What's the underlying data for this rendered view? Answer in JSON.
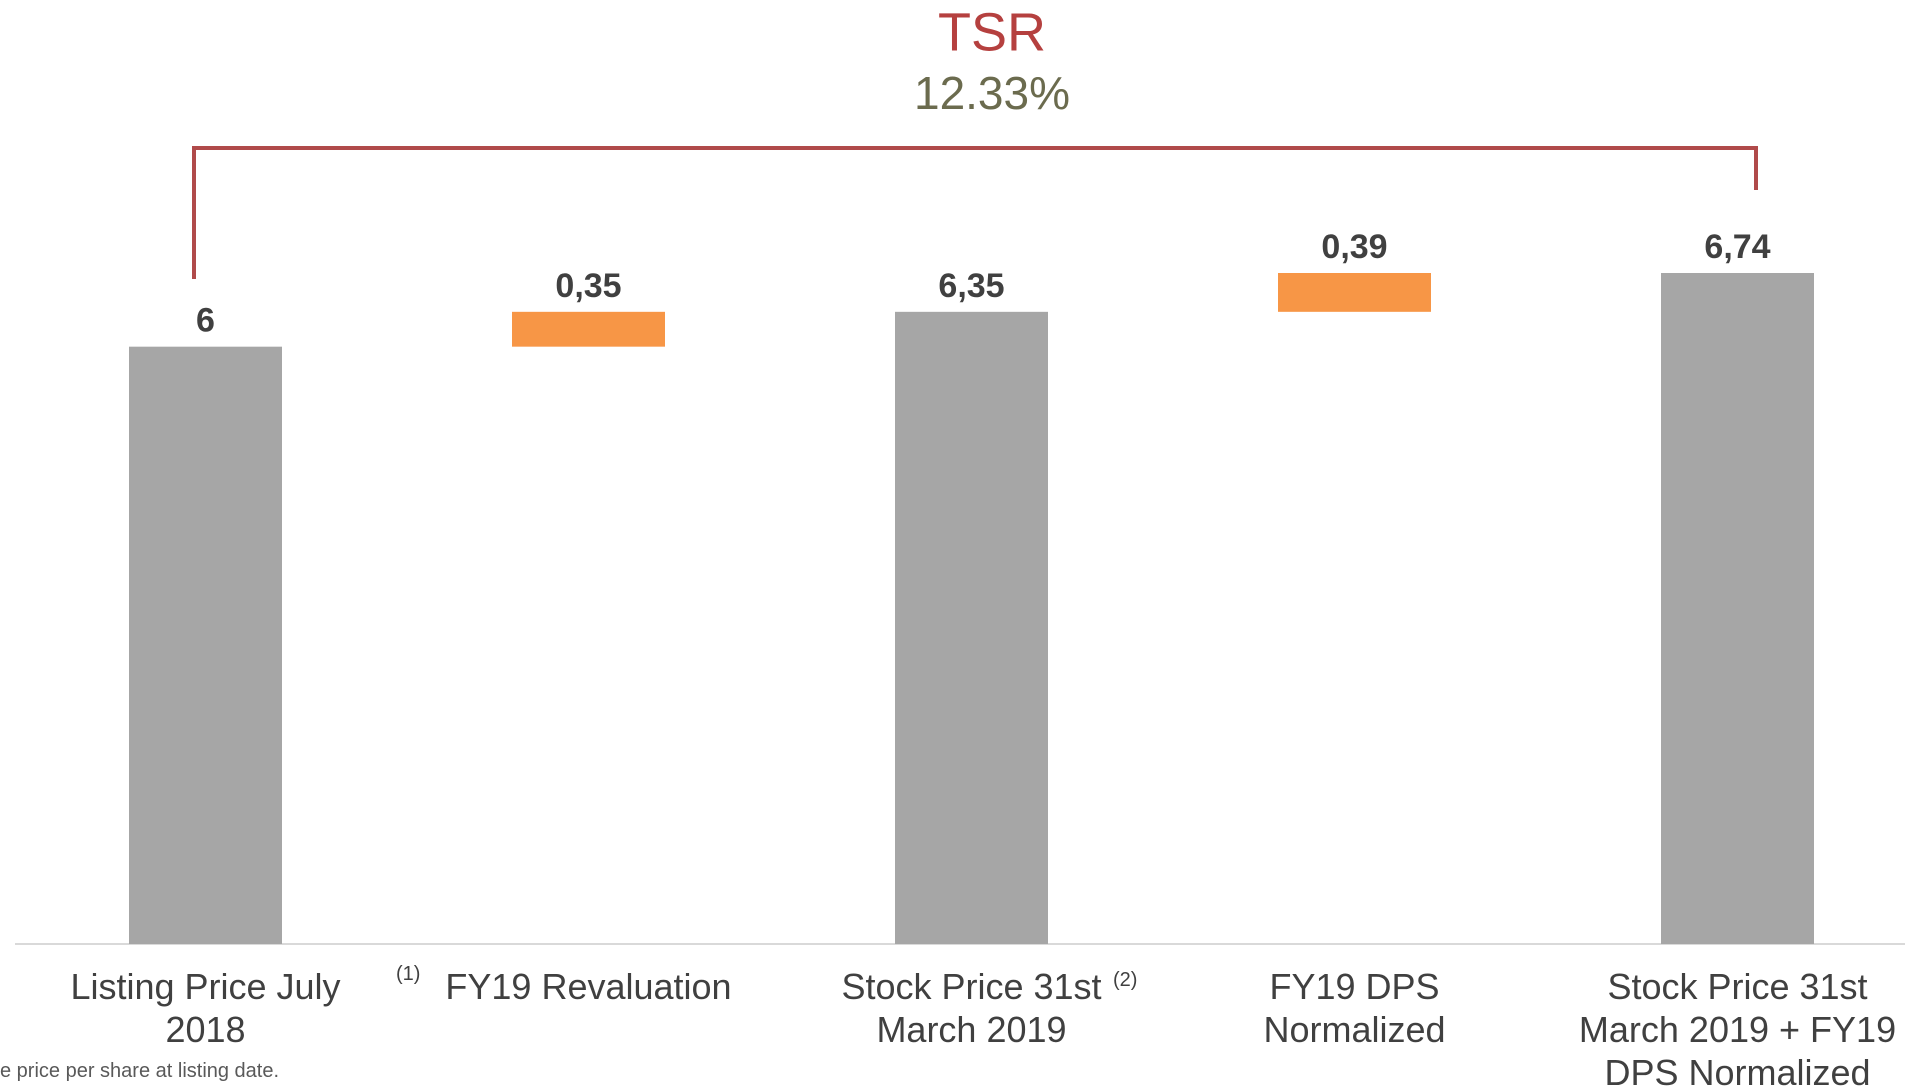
{
  "chart_data": {
    "type": "waterfall",
    "title": "TSR",
    "subtitle": "12.33%",
    "categories": [
      "Listing Price July 2018",
      "FY19 Revaluation",
      "Stock Price 31st March 2019",
      "FY19 DPS Normalized",
      "Stock Price 31st March 2019 + FY19 DPS Normalized"
    ],
    "values": [
      6,
      0.35,
      6.35,
      0.39,
      6.74
    ],
    "value_labels": [
      "6",
      "0,35",
      "6,35",
      "0,39",
      "6,74"
    ],
    "measure": [
      "total",
      "relative",
      "total",
      "relative",
      "total"
    ],
    "total_color": "#a6a6a6",
    "increase_color": "#f79646",
    "annotations": [
      {
        "text": "(1)",
        "category": 0
      },
      {
        "text": "(2)",
        "category": 2
      }
    ],
    "footnote": "e price per share at listing date."
  }
}
